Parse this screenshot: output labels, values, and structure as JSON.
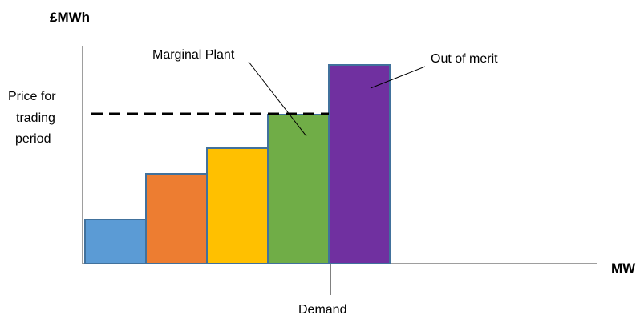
{
  "diagram": {
    "y_axis_label": "£MWh",
    "x_axis_label": "MW",
    "price_label": [
      "Price for",
      "trading",
      "period"
    ],
    "marginal_plant_label": "Marginal Plant",
    "out_of_merit_label": "Out of merit",
    "demand_label": "Demand"
  },
  "blocks": [
    {
      "name": "block-1",
      "color": "#5b9bd5",
      "level": 1
    },
    {
      "name": "block-2",
      "color": "#ed7d31",
      "level": 2
    },
    {
      "name": "block-3",
      "color": "#ffc000",
      "level": 3
    },
    {
      "name": "marginal-plant",
      "color": "#70ad47",
      "level": 4
    },
    {
      "name": "out-of-merit",
      "color": "#7030a0",
      "level": 5
    }
  ],
  "colors": {
    "block_border": "#41719c",
    "axis": "#7f7f7f",
    "leader": "#000000"
  }
}
